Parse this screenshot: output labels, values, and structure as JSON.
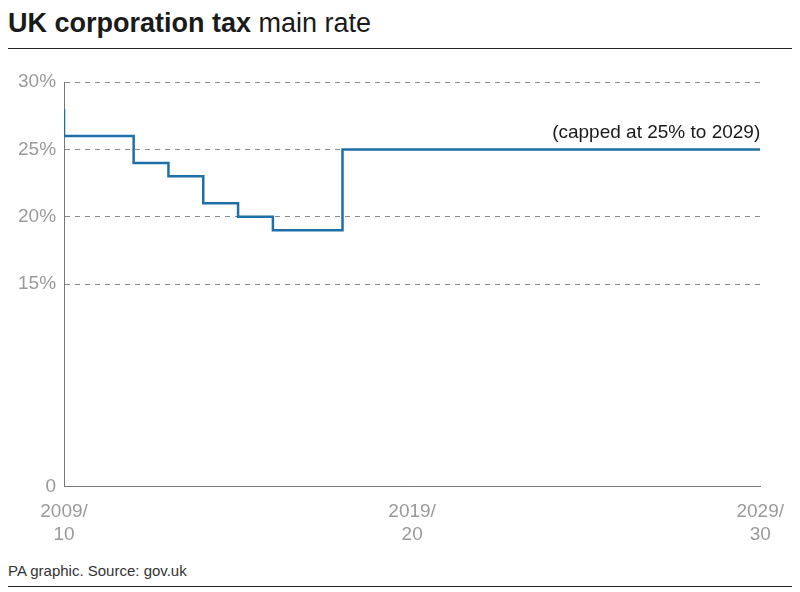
{
  "chart_data": {
    "type": "line",
    "title": "UK corporation tax main rate",
    "annotation": "(capped at 25% to 2029)",
    "source": "PA graphic. Source: gov.uk",
    "x": [
      2009,
      2011,
      2012,
      2013,
      2014,
      2015,
      2017,
      2023,
      2029
    ],
    "values": [
      28,
      26,
      24,
      23,
      21,
      20,
      19,
      25,
      25
    ],
    "color": "#1f6fa8",
    "line_style": "stepped",
    "xlim": [
      2009,
      2029
    ],
    "xticks": [
      {
        "value": 2009,
        "label": "2009/10"
      },
      {
        "value": 2019,
        "label": "2019/20"
      },
      {
        "value": 2029,
        "label": "2029/30"
      }
    ],
    "ylim": [
      0,
      30
    ],
    "yticks": [
      0,
      {
        "value": 15,
        "label": "15%"
      },
      {
        "value": 20,
        "label": "20%"
      },
      {
        "value": 25,
        "label": "25%"
      },
      {
        "value": 30,
        "label": "30%"
      }
    ],
    "grid": true
  }
}
